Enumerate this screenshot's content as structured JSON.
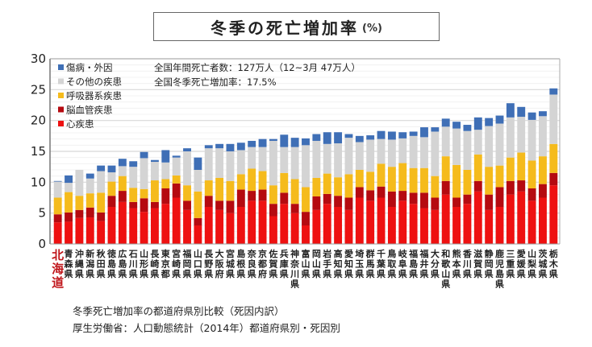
{
  "title": {
    "main": "冬季の死亡増加率",
    "unit": "(%)"
  },
  "notes": [
    "全国年間死亡者数：127万人（12~3月 47万人）",
    "全国冬季死亡増加率：17.5%"
  ],
  "captions": [
    "冬季死亡増加率の都道府県別比較（死因内訳）",
    "厚生労働省：人口動態統計（2014年）都道府県別・死因別"
  ],
  "chart_data": {
    "type": "bar",
    "stacked": true,
    "title": "冬季の死亡増加率 (%)",
    "xlabel": "",
    "ylabel": "",
    "ylim": [
      0,
      30
    ],
    "yticks": [
      0,
      5,
      10,
      15,
      20,
      25,
      30
    ],
    "grid": true,
    "legend_position": "top-left",
    "highlighted_category": "北海道",
    "categories": [
      "北海道",
      "青森県",
      "沖縄県",
      "新潟県",
      "秋田県",
      "徳島県",
      "広島県",
      "石川県",
      "山形県",
      "長崎県",
      "東京都",
      "宮崎県",
      "福岡県",
      "山口県",
      "長野県",
      "大阪府",
      "宮城県",
      "島根県",
      "奈良県",
      "京都府",
      "佐賀県",
      "兵庫県",
      "神奈川県",
      "富山県",
      "岡山県",
      "岩手県",
      "高知県",
      "愛知県",
      "埼玉県",
      "群馬県",
      "千葉県",
      "鳥取県",
      "岐阜県",
      "福島県",
      "福井県",
      "大分県",
      "和歌山県",
      "熊本県",
      "香川県",
      "滋賀県",
      "静岡県",
      "鹿児島県",
      "三重県",
      "愛媛県",
      "山梨県",
      "茨城県",
      "栃木県"
    ],
    "series": [
      {
        "name": "心疾患",
        "color": "#ee1111",
        "values": [
          3.5,
          3.6,
          4.2,
          4.3,
          3.7,
          6.0,
          6.8,
          5.8,
          5.2,
          5.8,
          6.5,
          7.5,
          5.5,
          3.0,
          6.0,
          5.5,
          5.0,
          6.0,
          7.0,
          7.0,
          4.5,
          6.5,
          5.0,
          3.0,
          5.5,
          6.5,
          6.0,
          5.5,
          7.5,
          7.0,
          7.5,
          6.0,
          7.0,
          6.5,
          5.8,
          5.5,
          8.0,
          6.0,
          6.5,
          8.5,
          5.5,
          6.0,
          8.0,
          8.5,
          7.0,
          7.5,
          9.5
        ]
      },
      {
        "name": "脳血管疾患",
        "color": "#b50a10",
        "values": [
          1.3,
          1.5,
          1.3,
          1.6,
          1.4,
          1.8,
          1.8,
          1.0,
          2.2,
          1.0,
          2.5,
          2.3,
          1.5,
          1.2,
          1.8,
          1.5,
          2.0,
          2.8,
          1.6,
          1.8,
          2.0,
          1.8,
          1.5,
          2.2,
          2.2,
          1.6,
          1.8,
          2.0,
          1.7,
          1.7,
          1.8,
          2.5,
          1.6,
          1.8,
          2.5,
          2.0,
          2.2,
          1.5,
          1.5,
          1.7,
          2.5,
          3.2,
          2.2,
          1.8,
          2.0,
          2.2,
          2.0
        ]
      },
      {
        "name": "呼吸器系疾患",
        "color": "#f5bb1c",
        "values": [
          2.7,
          3.3,
          2.3,
          2.3,
          3.2,
          2.3,
          2.4,
          2.3,
          1.5,
          3.5,
          1.5,
          1.3,
          2.5,
          4.3,
          2.5,
          3.7,
          3.2,
          2.5,
          3.6,
          3.0,
          3.0,
          3.2,
          4.0,
          4.0,
          3.0,
          3.3,
          3.0,
          3.8,
          2.8,
          3.0,
          3.7,
          4.0,
          4.5,
          4.0,
          4.0,
          3.5,
          4.0,
          5.3,
          4.0,
          4.3,
          4.5,
          3.5,
          3.8,
          4.5,
          4.5,
          4.5,
          4.7
        ]
      },
      {
        "name": "その他の疾患",
        "color": "#d4d4d4",
        "values": [
          2.6,
          1.5,
          4.2,
          2.4,
          3.5,
          1.5,
          1.6,
          3.4,
          5.0,
          3.0,
          2.7,
          2.9,
          5.5,
          3.5,
          5.2,
          4.8,
          4.8,
          3.9,
          3.5,
          3.9,
          7.2,
          4.2,
          5.2,
          6.8,
          6.0,
          4.8,
          5.5,
          5.9,
          4.5,
          5.2,
          4.0,
          4.4,
          4.0,
          5.2,
          5.0,
          7.2,
          4.8,
          5.9,
          6.3,
          4.0,
          6.6,
          6.8,
          6.5,
          5.8,
          6.6,
          6.5,
          8.0
        ]
      },
      {
        "name": "傷病・外因",
        "color": "#3f6fb6",
        "values": [
          0.1,
          1.2,
          0.0,
          0.8,
          0.9,
          1.1,
          1.2,
          0.9,
          1.0,
          0.3,
          2.0,
          0.3,
          0.5,
          2.0,
          0.5,
          0.7,
          1.2,
          1.2,
          1.0,
          1.3,
          0.3,
          2.0,
          1.5,
          1.1,
          1.1,
          1.9,
          1.8,
          0.6,
          1.0,
          0.7,
          1.3,
          1.3,
          1.0,
          0.7,
          1.6,
          0.7,
          1.3,
          1.1,
          1.0,
          2.0,
          1.3,
          1.3,
          2.3,
          1.6,
          1.2,
          0.8,
          1.0
        ]
      }
    ]
  },
  "legend": [
    {
      "label": "傷病・外因",
      "color": "#3f6fb6"
    },
    {
      "label": "その他の疾患",
      "color": "#d4d4d4"
    },
    {
      "label": "呼吸器系疾患",
      "color": "#f5bb1c"
    },
    {
      "label": "脳血管疾患",
      "color": "#b50a10"
    },
    {
      "label": "心疾患",
      "color": "#ee1111"
    }
  ]
}
